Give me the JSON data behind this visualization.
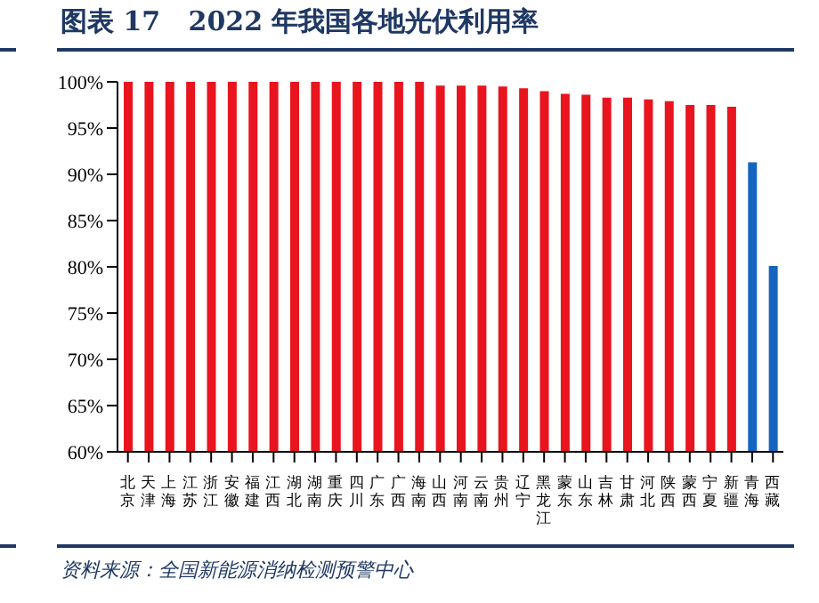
{
  "chart_data": {
    "type": "bar",
    "title": "图表 17   2022 年我国各地光伏利用率",
    "categories": [
      "北京",
      "天津",
      "上海",
      "江苏",
      "浙江",
      "安徽",
      "福建",
      "江西",
      "湖北",
      "湖南",
      "重庆",
      "四川",
      "广东",
      "广西",
      "海南",
      "山西",
      "河南",
      "云南",
      "贵州",
      "辽宁",
      "黑龙江",
      "蒙东",
      "山东",
      "吉林",
      "甘肃",
      "河北",
      "陕西",
      "蒙西",
      "宁夏",
      "新疆",
      "青海",
      "西藏"
    ],
    "values": [
      100,
      100,
      100,
      100,
      100,
      100,
      100,
      100,
      100,
      100,
      100,
      100,
      100,
      100,
      100,
      99.6,
      99.6,
      99.6,
      99.5,
      99.3,
      99.0,
      98.7,
      98.6,
      98.3,
      98.3,
      98.1,
      97.9,
      97.5,
      97.5,
      97.3,
      91.3,
      80.1
    ],
    "colors": [
      "#e8141e",
      "#e8141e",
      "#e8141e",
      "#e8141e",
      "#e8141e",
      "#e8141e",
      "#e8141e",
      "#e8141e",
      "#e8141e",
      "#e8141e",
      "#e8141e",
      "#e8141e",
      "#e8141e",
      "#e8141e",
      "#e8141e",
      "#e8141e",
      "#e8141e",
      "#e8141e",
      "#e8141e",
      "#e8141e",
      "#e8141e",
      "#e8141e",
      "#e8141e",
      "#e8141e",
      "#e8141e",
      "#e8141e",
      "#e8141e",
      "#e8141e",
      "#e8141e",
      "#e8141e",
      "#1565c0",
      "#1565c0"
    ],
    "ylim": [
      60,
      100
    ],
    "yticks": [
      {
        "value": 60,
        "label": "60%"
      },
      {
        "value": 65,
        "label": "65%"
      },
      {
        "value": 70,
        "label": "70%"
      },
      {
        "value": 75,
        "label": "75%"
      },
      {
        "value": 80,
        "label": "80%"
      },
      {
        "value": 85,
        "label": "85%"
      },
      {
        "value": 90,
        "label": "90%"
      },
      {
        "value": 95,
        "label": "95%"
      },
      {
        "value": 100,
        "label": "100%"
      }
    ],
    "annotations": [
      "资料来源：全国新能源消纳检测预警中心"
    ]
  }
}
